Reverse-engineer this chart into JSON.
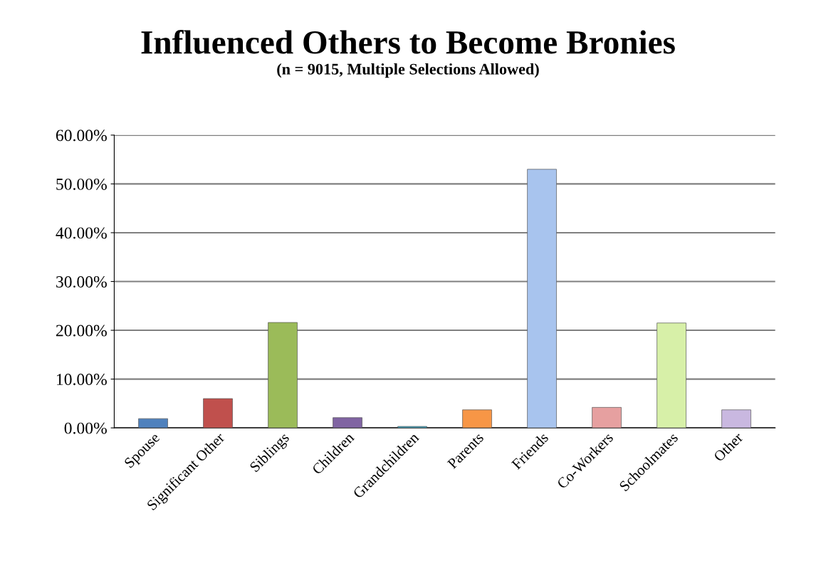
{
  "chart_data": {
    "type": "bar",
    "title": "Influenced Others to Become Bronies",
    "subtitle": "(n = 9015, Multiple Selections Allowed)",
    "categories": [
      "Spouse",
      "Significant Other",
      "Siblings",
      "Children",
      "Grandchildren",
      "Parents",
      "Friends",
      "Co-Workers",
      "Schoolmates",
      "Other"
    ],
    "values": [
      1.9,
      6.0,
      21.6,
      2.1,
      0.3,
      3.7,
      53.0,
      4.2,
      21.5,
      3.7
    ],
    "colors": [
      "#4f81bd",
      "#c0504d",
      "#9bbb59",
      "#8064a2",
      "#4bacc6",
      "#f79646",
      "#a8c4ee",
      "#e6a0a0",
      "#d7f0a8",
      "#c9b8e0"
    ],
    "ylim": [
      0,
      60
    ],
    "yticks": [
      {
        "value": 0,
        "label": "0.00%"
      },
      {
        "value": 10,
        "label": "10.00%"
      },
      {
        "value": 20,
        "label": "20.00%"
      },
      {
        "value": 30,
        "label": "30.00%"
      },
      {
        "value": 40,
        "label": "40.00%"
      },
      {
        "value": 50,
        "label": "50.00%"
      },
      {
        "value": 60,
        "label": "60.00%"
      }
    ],
    "grid": "y",
    "legend": false
  }
}
